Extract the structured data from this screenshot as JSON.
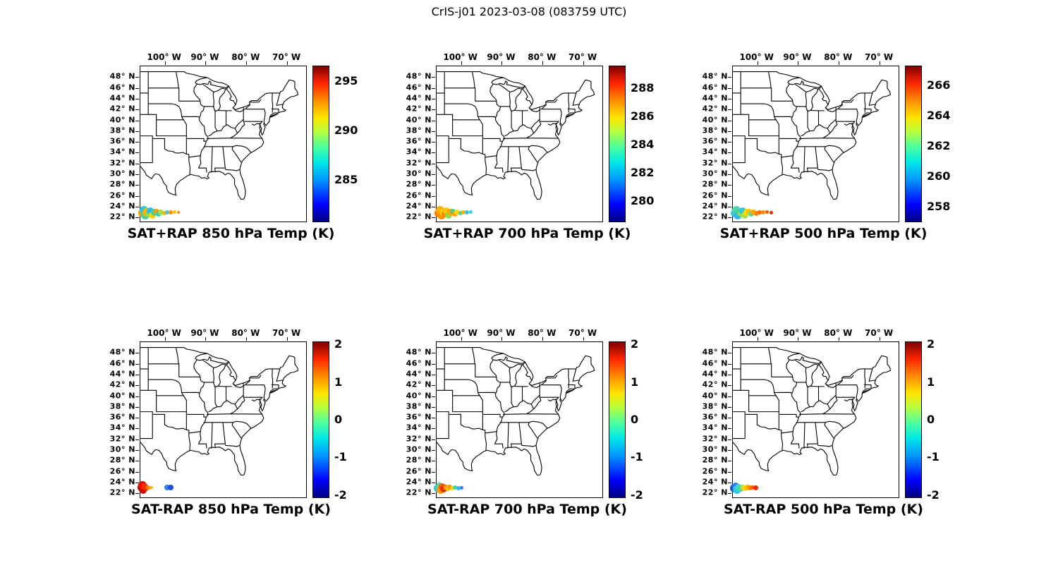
{
  "figure_title": "CrIS-j01 2023-03-08 (083759 UTC)",
  "theme": {
    "background": "#ffffff",
    "line_color": "#000000",
    "colormap_name": "jet",
    "jet_stops": [
      [
        "#00007f",
        0
      ],
      [
        "#0000ff",
        11
      ],
      [
        "#0090ff",
        26
      ],
      [
        "#00e8e8",
        38
      ],
      [
        "#4dff9e",
        48
      ],
      [
        "#b8ff3e",
        58
      ],
      [
        "#ffe400",
        67
      ],
      [
        "#ff8c00",
        78
      ],
      [
        "#ff2500",
        89
      ],
      [
        "#7f0000",
        100
      ]
    ]
  },
  "axes": {
    "lon_range": [
      -106,
      -65
    ],
    "lat_range": [
      21,
      50
    ],
    "lon_tick_values": [
      -100,
      -90,
      -80,
      -70
    ],
    "lon_tick_labels": [
      "100° W",
      "90° W",
      "80° W",
      "70° W"
    ],
    "lat_tick_values": [
      48,
      46,
      44,
      42,
      40,
      38,
      36,
      34,
      32,
      30,
      28,
      26,
      24,
      22
    ],
    "lat_tick_labels": [
      "48° N",
      "46° N",
      "44° N",
      "42° N",
      "40° N",
      "38° N",
      "36° N",
      "34° N",
      "32° N",
      "30° N",
      "28° N",
      "26° N",
      "24° N",
      "22° N"
    ],
    "grid": false,
    "map": "US state boundaries, CONUS east of 106W"
  },
  "chart_data": [
    {
      "type": "scatter",
      "title": "SAT+RAP 850 hPa Temp (K)",
      "colormap": "jet",
      "colorbar_ticks": [
        295,
        290,
        285
      ],
      "colorbar_range": [
        280.7,
        296.6
      ],
      "points_format": [
        "lon_deg",
        "lat_deg",
        "radius_px",
        "color"
      ],
      "points": [
        [
          -105.5,
          22.8,
          6,
          "#ff9d00"
        ],
        [
          -105.2,
          23.4,
          6,
          "#2fc5d8"
        ],
        [
          -104.8,
          22.4,
          6,
          "#45d19a"
        ],
        [
          -104.4,
          23.0,
          6,
          "#ffb300"
        ],
        [
          -104.0,
          22.7,
          5,
          "#8ade57"
        ],
        [
          -103.5,
          23.2,
          5,
          "#2fb9e8"
        ],
        [
          -103.1,
          22.5,
          5,
          "#ffd000"
        ],
        [
          -102.6,
          22.9,
          5,
          "#49cf90"
        ],
        [
          -102.1,
          23.1,
          4,
          "#ff9d00"
        ],
        [
          -101.5,
          22.7,
          4,
          "#37c8c4"
        ],
        [
          -100.9,
          23.0,
          4,
          "#a5e04a"
        ],
        [
          -100.2,
          22.8,
          3,
          "#ffb300"
        ],
        [
          -99.4,
          23.0,
          3,
          "#3fcadf"
        ],
        [
          -98.5,
          22.9,
          3,
          "#ff9100"
        ],
        [
          -97.6,
          23.0,
          2.5,
          "#ffc400"
        ],
        [
          -96.6,
          22.9,
          2,
          "#ff8400"
        ]
      ]
    },
    {
      "type": "scatter",
      "title": "SAT+RAP 700 hPa Temp (K)",
      "colormap": "jet",
      "colorbar_ticks": [
        288,
        286,
        284,
        282,
        280
      ],
      "colorbar_range": [
        278.5,
        289.6
      ],
      "points_format": [
        "lon_deg",
        "lat_deg",
        "radius_px",
        "color"
      ],
      "points": [
        [
          -105.5,
          22.8,
          6,
          "#ff7a00"
        ],
        [
          -105.2,
          23.4,
          6,
          "#ffb300"
        ],
        [
          -104.8,
          22.4,
          6,
          "#ff9100"
        ],
        [
          -104.4,
          23.0,
          5,
          "#ffd000"
        ],
        [
          -104.0,
          22.7,
          5,
          "#ff8400"
        ],
        [
          -103.5,
          23.2,
          5,
          "#ffc400"
        ],
        [
          -103.1,
          22.5,
          5,
          "#8ade57"
        ],
        [
          -102.6,
          22.9,
          5,
          "#ffaa00"
        ],
        [
          -102.1,
          23.1,
          4,
          "#49cf90"
        ],
        [
          -101.5,
          22.7,
          4,
          "#ff9d00"
        ],
        [
          -100.9,
          23.0,
          4,
          "#ffd900"
        ],
        [
          -100.2,
          22.8,
          3,
          "#45d19a"
        ],
        [
          -99.4,
          23.0,
          3,
          "#ffb300"
        ],
        [
          -98.5,
          22.9,
          3,
          "#35c3e0"
        ],
        [
          -97.6,
          23.0,
          2.5,
          "#3fcadf"
        ]
      ]
    },
    {
      "type": "scatter",
      "title": "SAT+RAP 500 hPa Temp (K)",
      "colormap": "jet",
      "colorbar_ticks": [
        266,
        264,
        262,
        260,
        258
      ],
      "colorbar_range": [
        257.0,
        267.3
      ],
      "points_format": [
        "lon_deg",
        "lat_deg",
        "radius_px",
        "color"
      ],
      "points": [
        [
          -105.5,
          22.8,
          6,
          "#35c3e0"
        ],
        [
          -105.2,
          23.4,
          6,
          "#4fd6a8"
        ],
        [
          -104.8,
          22.4,
          6,
          "#2fb9e8"
        ],
        [
          -104.4,
          23.0,
          5,
          "#45d19a"
        ],
        [
          -104.0,
          22.7,
          5,
          "#8ade57"
        ],
        [
          -103.5,
          23.2,
          5,
          "#35c3e0"
        ],
        [
          -103.1,
          22.5,
          5,
          "#a5e04a"
        ],
        [
          -102.6,
          22.9,
          5,
          "#ffd900"
        ],
        [
          -102.1,
          23.1,
          4,
          "#ffc400"
        ],
        [
          -101.5,
          22.7,
          4,
          "#4fd6a8"
        ],
        [
          -100.9,
          23.0,
          4,
          "#ffaa00"
        ],
        [
          -100.2,
          22.8,
          3.5,
          "#ff8400"
        ],
        [
          -99.4,
          23.0,
          3,
          "#ff6a00"
        ],
        [
          -98.5,
          22.9,
          3,
          "#ff9100"
        ],
        [
          -97.6,
          23.0,
          2.5,
          "#ff5a00"
        ],
        [
          -96.6,
          22.95,
          2.5,
          "#e62e00"
        ]
      ]
    },
    {
      "type": "scatter",
      "title": "SAT-RAP 850 hPa Temp (K)",
      "colormap": "jet",
      "colorbar_ticks": [
        2,
        1,
        0,
        -1,
        -2
      ],
      "colorbar_range": [
        -2.08,
        2.08
      ],
      "points_format": [
        "lon_deg",
        "lat_deg",
        "radius_px",
        "color"
      ],
      "points": [
        [
          -105.7,
          23.1,
          6,
          "#b30000"
        ],
        [
          -105.4,
          23.5,
          6,
          "#e01000"
        ],
        [
          -105.3,
          22.6,
          5,
          "#cc0a00"
        ],
        [
          -104.9,
          23.2,
          5,
          "#ff2a00"
        ],
        [
          -104.6,
          22.9,
          4,
          "#e63000"
        ],
        [
          -104.2,
          23.1,
          3,
          "#ff6a00"
        ],
        [
          -103.8,
          23.0,
          2.5,
          "#ff9100"
        ],
        [
          -103.3,
          23.05,
          2,
          "#ffb300"
        ],
        [
          -99.4,
          23.1,
          4,
          "#2f7dff"
        ],
        [
          -98.6,
          23.1,
          4,
          "#1e4fd6"
        ]
      ]
    },
    {
      "type": "scatter",
      "title": "SAT-RAP 700 hPa Temp (K)",
      "colormap": "jet",
      "colorbar_ticks": [
        2,
        1,
        0,
        -1,
        -2
      ],
      "colorbar_range": [
        -2.08,
        2.08
      ],
      "points_format": [
        "lon_deg",
        "lat_deg",
        "radius_px",
        "color"
      ],
      "points": [
        [
          -105.6,
          23.0,
          6,
          "#35c3e0"
        ],
        [
          -105.3,
          23.4,
          5,
          "#4fd6a8"
        ],
        [
          -105.0,
          22.7,
          6,
          "#ff9d00"
        ],
        [
          -104.6,
          23.2,
          5,
          "#ff5a00"
        ],
        [
          -104.2,
          22.8,
          5,
          "#e62e00"
        ],
        [
          -103.8,
          23.1,
          4,
          "#ff7a00"
        ],
        [
          -103.3,
          22.9,
          4,
          "#ffc400"
        ],
        [
          -102.8,
          23.1,
          3.5,
          "#ff9100"
        ],
        [
          -102.2,
          23.0,
          3,
          "#ffd900"
        ],
        [
          -101.5,
          23.05,
          3,
          "#49cf90"
        ],
        [
          -100.7,
          23.0,
          3,
          "#35b9e8"
        ],
        [
          -99.9,
          23.05,
          2.5,
          "#2f7dff"
        ]
      ]
    },
    {
      "type": "scatter",
      "title": "SAT-RAP 500 hPa Temp (K)",
      "colormap": "jet",
      "colorbar_ticks": [
        2,
        1,
        0,
        -1,
        -2
      ],
      "colorbar_range": [
        -2.08,
        2.08
      ],
      "points_format": [
        "lon_deg",
        "lat_deg",
        "radius_px",
        "color"
      ],
      "points": [
        [
          -105.6,
          23.0,
          6,
          "#1e4fd6"
        ],
        [
          -105.3,
          23.4,
          5,
          "#2f7dff"
        ],
        [
          -105.0,
          22.7,
          6,
          "#35c3e0"
        ],
        [
          -104.6,
          23.1,
          5,
          "#3fd4d4"
        ],
        [
          -104.1,
          22.9,
          5,
          "#4fd6a8"
        ],
        [
          -103.6,
          23.1,
          4,
          "#a5e04a"
        ],
        [
          -103.0,
          22.9,
          4,
          "#ffd900"
        ],
        [
          -102.4,
          23.05,
          4,
          "#ffb300"
        ],
        [
          -101.8,
          23.0,
          3.5,
          "#ff8400"
        ],
        [
          -101.1,
          23.05,
          3,
          "#ff5a00"
        ],
        [
          -100.3,
          23.0,
          3.5,
          "#e62e00"
        ]
      ]
    }
  ]
}
